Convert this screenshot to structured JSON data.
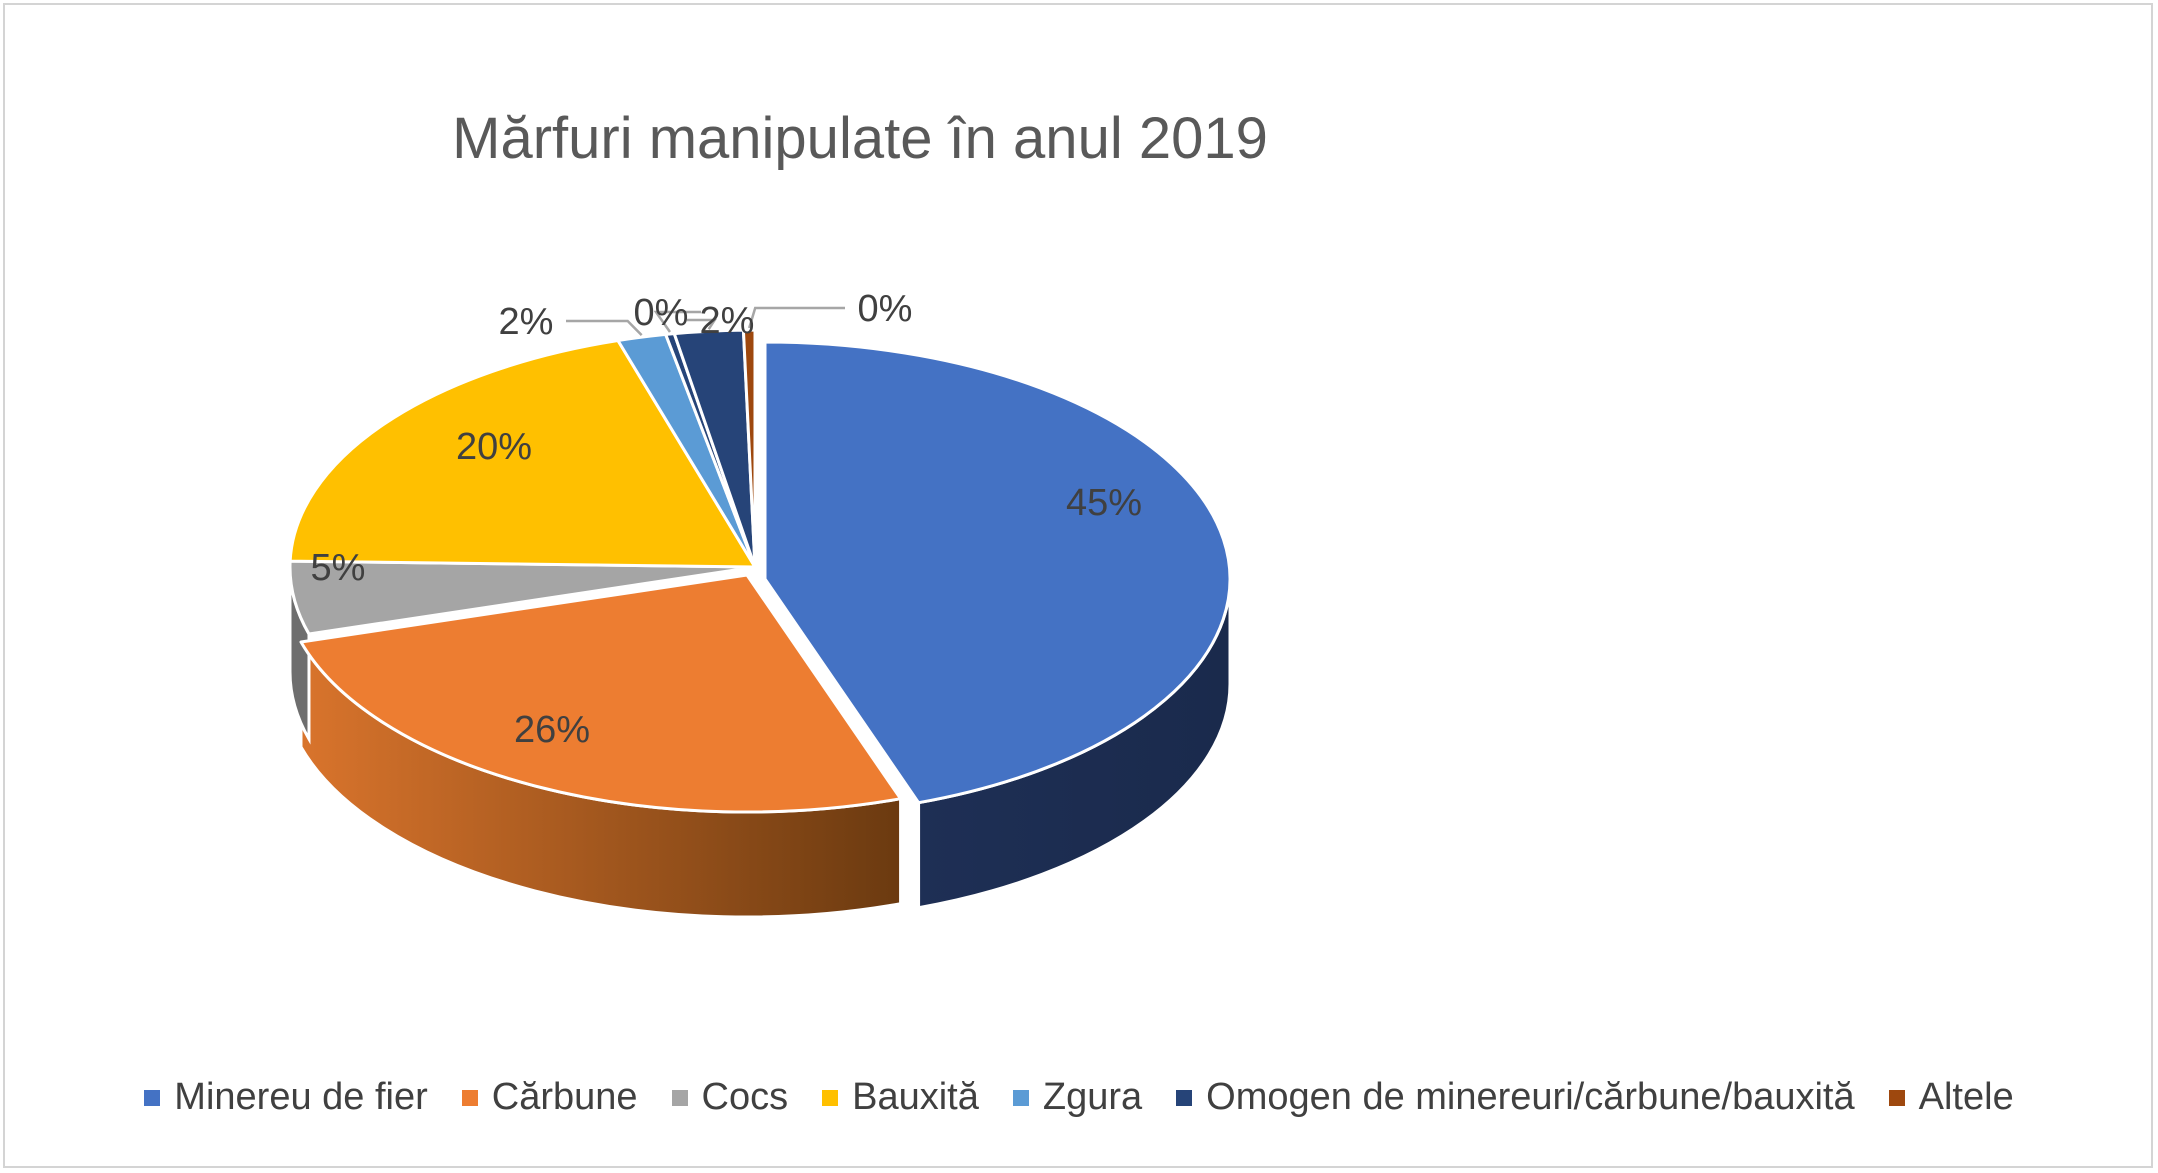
{
  "chart_data": {
    "type": "pie",
    "style": "3d",
    "title": "Mărfuri manipulate în anul 2019",
    "legend_position": "bottom",
    "slices": [
      {
        "name": "Minereu de fier",
        "value": 45,
        "label": "45%",
        "color": "#4472C4",
        "side_color": "#1A2D50"
      },
      {
        "name": "Cărbune",
        "value": 26,
        "label": "26%",
        "color": "#ED7D31",
        "side_color": "#A5531C"
      },
      {
        "name": "Cocs",
        "value": 5,
        "label": "5%",
        "color": "#A5A5A5",
        "side_color": "#6E6E6E"
      },
      {
        "name": "Bauxită",
        "value": 20,
        "label": "20%",
        "color": "#FFC000",
        "side_color": "#B38600"
      },
      {
        "name": "Zgura",
        "value": 1.7,
        "label": "2%",
        "color": "#5B9BD5",
        "side_color": "#3A6E9E"
      },
      {
        "name": "Omogen de minereuri/cărbune/bauxită",
        "value": 0.3,
        "label": "0%",
        "color": "#264478",
        "side_color": "#14284A"
      },
      {
        "name": "Altele",
        "value": 2.4,
        "label": "2%",
        "color": "#264478",
        "side_color": "#14284A"
      },
      {
        "name": "Altele",
        "value": 0.4,
        "label": "0%",
        "color": "#9E480E",
        "side_color": "#6B2F08"
      }
    ],
    "legend": [
      {
        "name": "Minereu de fier",
        "color": "#4472C4"
      },
      {
        "name": "Cărbune",
        "color": "#ED7D31"
      },
      {
        "name": "Cocs",
        "color": "#A5A5A5"
      },
      {
        "name": "Bauxită",
        "color": "#FFC000"
      },
      {
        "name": "Zgura",
        "color": "#5B9BD5"
      },
      {
        "name": "Omogen de minereuri/cărbune/bauxită",
        "color": "#264478"
      },
      {
        "name": "Altele",
        "color": "#9E480E"
      }
    ]
  }
}
